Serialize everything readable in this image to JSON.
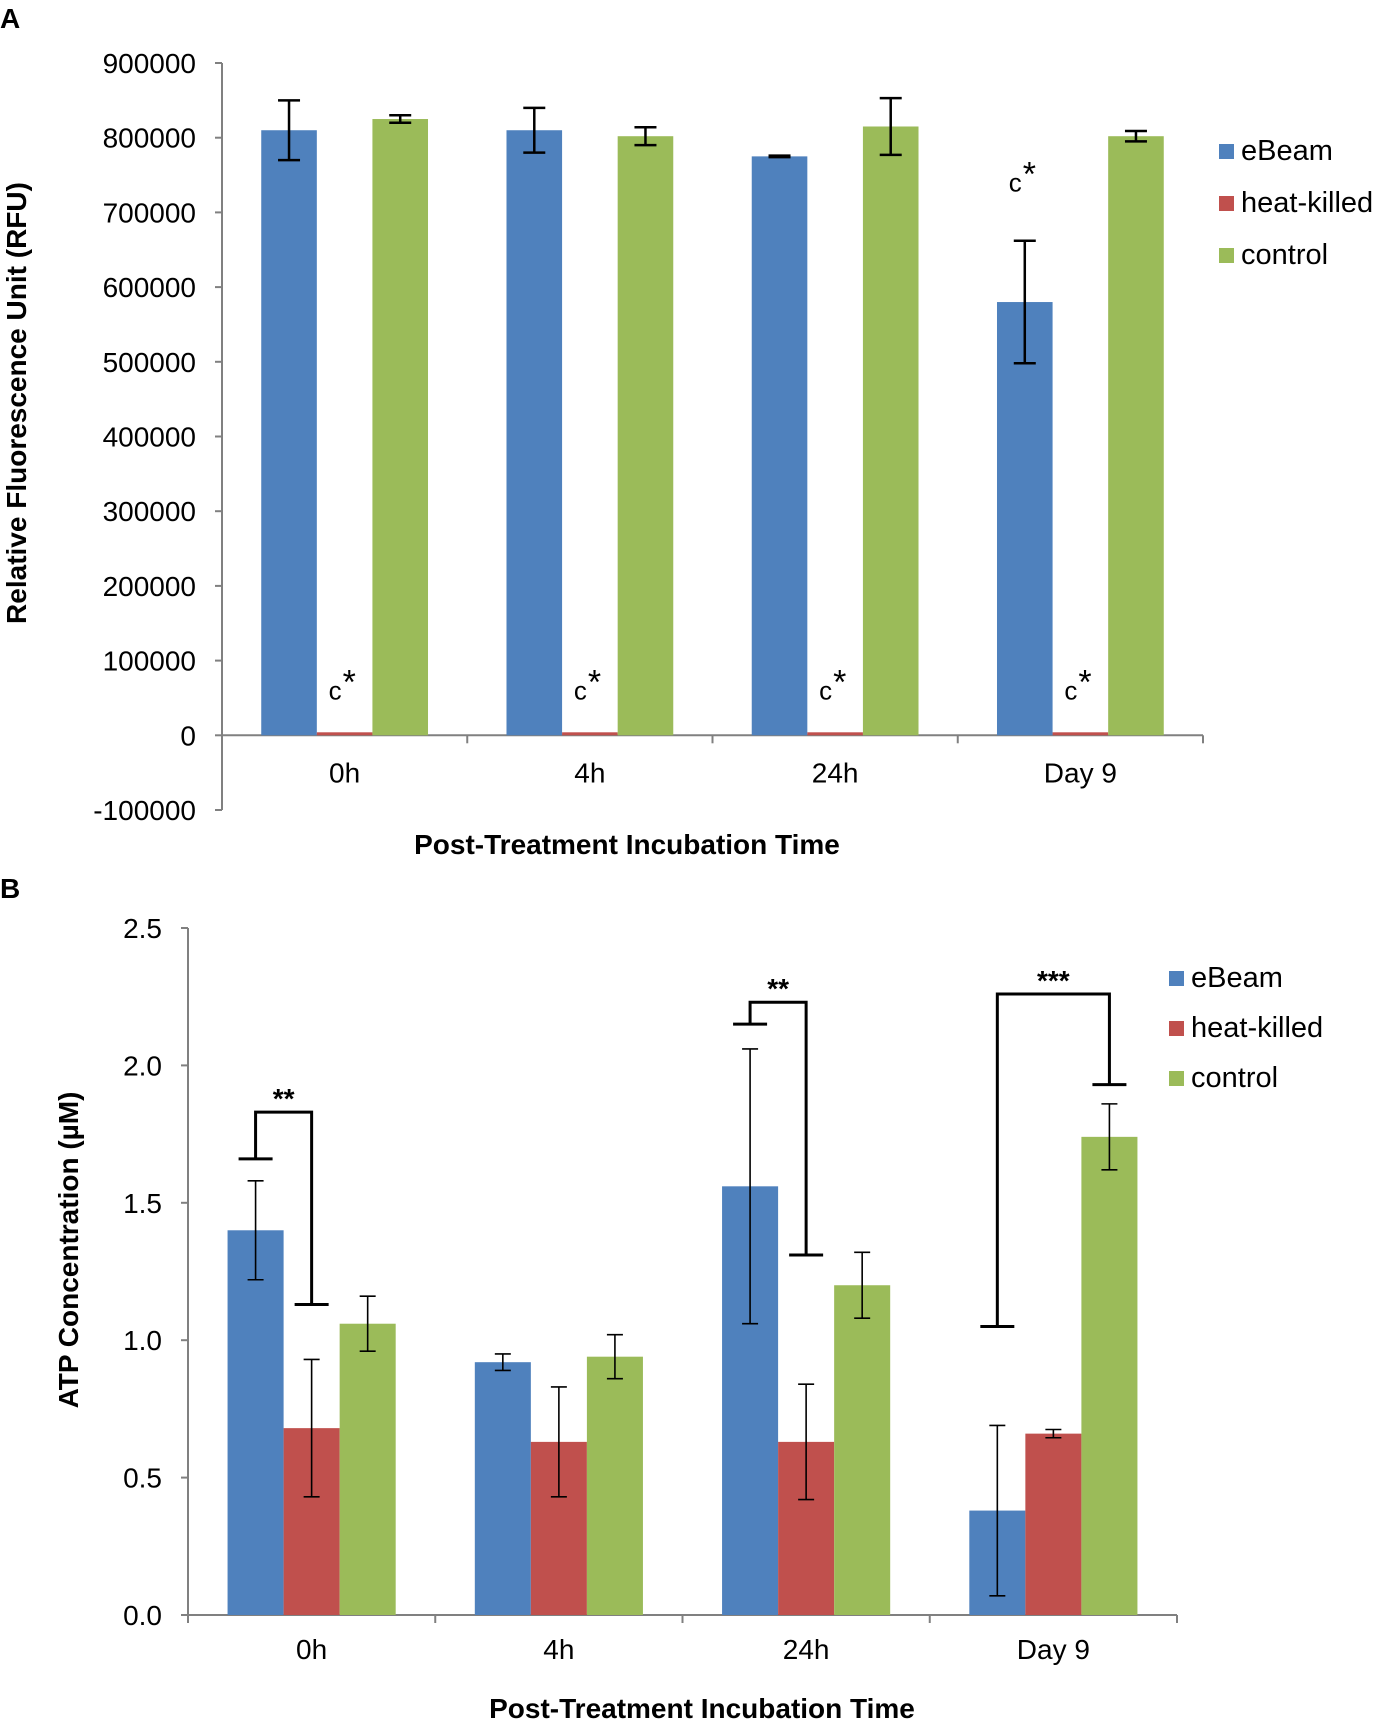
{
  "figure": {
    "panels": [
      "A",
      "B"
    ]
  },
  "chart_data": [
    {
      "type": "bar",
      "panel": "A",
      "title": "",
      "xlabel": "Post-Treatment Incubation Time",
      "ylabel": "Relative Fluorescence Unit (RFU)",
      "categories": [
        "0h",
        "4h",
        "24h",
        "Day 9"
      ],
      "ylim": [
        -100000,
        900000
      ],
      "yticks": [
        -100000,
        0,
        100000,
        200000,
        300000,
        400000,
        500000,
        600000,
        700000,
        800000,
        900000
      ],
      "ytick_labels": [
        "-100000",
        "0",
        "100000",
        "200000",
        "300000",
        "400000",
        "500000",
        "600000",
        "700000",
        "800000",
        "900000"
      ],
      "series": [
        {
          "name": "eBeam",
          "color": "#4F81BD",
          "values": [
            810000,
            810000,
            775000,
            580000
          ],
          "errors": [
            40000,
            30000,
            1000,
            82000
          ]
        },
        {
          "name": "heat-killed",
          "color": "#C0504D",
          "values": [
            4000,
            4000,
            4000,
            4000
          ],
          "errors": [
            0,
            0,
            0,
            0
          ]
        },
        {
          "name": "control",
          "color": "#9BBB59",
          "values": [
            825000,
            802000,
            815000,
            802000
          ],
          "errors": [
            5000,
            12000,
            38000,
            7000
          ]
        }
      ],
      "annotations": [
        {
          "text": "c",
          "star": "*",
          "category": 0,
          "series": 1,
          "value": 48000
        },
        {
          "text": "c",
          "star": "*",
          "category": 1,
          "series": 1,
          "value": 48000
        },
        {
          "text": "c",
          "star": "*",
          "category": 2,
          "series": 1,
          "value": 48000
        },
        {
          "text": "c",
          "star": "*",
          "category": 3,
          "series": 1,
          "value": 48000
        },
        {
          "text": "c",
          "star": "*",
          "category": 3,
          "series": 0,
          "value": 728000
        }
      ],
      "legend_position": "top-right"
    },
    {
      "type": "bar",
      "panel": "B",
      "title": "",
      "xlabel": "Post-Treatment Incubation Time",
      "ylabel": "ATP Concentration (µM)",
      "categories": [
        "0h",
        "4h",
        "24h",
        "Day 9"
      ],
      "ylim": [
        0,
        2.5
      ],
      "yticks": [
        0,
        0.5,
        1.0,
        1.5,
        2.0,
        2.5
      ],
      "ytick_labels": [
        "0.0",
        "0.5",
        "1.0",
        "1.5",
        "2.0",
        "2.5"
      ],
      "series": [
        {
          "name": "eBeam",
          "color": "#4F81BD",
          "values": [
            1.4,
            0.92,
            1.56,
            0.38
          ],
          "errors": [
            0.18,
            0.03,
            0.5,
            0.31
          ]
        },
        {
          "name": "heat-killed",
          "color": "#C0504D",
          "values": [
            0.68,
            0.63,
            0.63,
            0.66
          ],
          "errors": [
            0.25,
            0.2,
            0.21,
            0.015
          ]
        },
        {
          "name": "control",
          "color": "#9BBB59",
          "values": [
            1.06,
            0.94,
            1.2,
            1.74
          ],
          "errors": [
            0.1,
            0.08,
            0.12,
            0.12
          ]
        }
      ],
      "significance": [
        {
          "category": 0,
          "from_series": 0,
          "to_series": 1,
          "left": 1.66,
          "right": 1.13,
          "top": 1.83,
          "label": "**"
        },
        {
          "category": 2,
          "from_series": 0,
          "to_series": 1,
          "left": 2.15,
          "right": 1.31,
          "top": 2.23,
          "label": "**"
        },
        {
          "category": 3,
          "from_series": 0,
          "to_series": 2,
          "left": 1.05,
          "right": 1.93,
          "top": 2.26,
          "label": "***"
        }
      ],
      "legend_position": "top-right"
    }
  ]
}
